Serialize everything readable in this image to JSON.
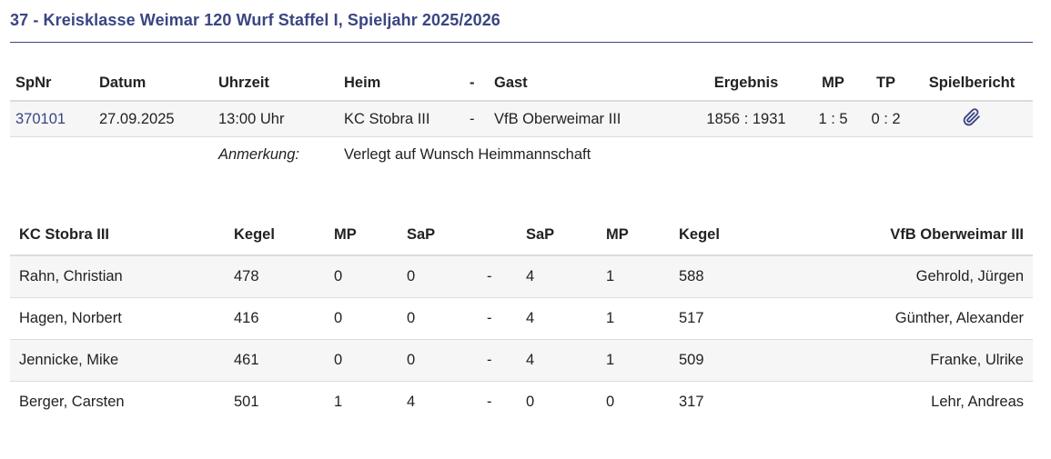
{
  "title": "37 - Kreisklasse Weimar 120 Wurf Staffel I, Spieljahr 2025/2026",
  "match": {
    "headers": {
      "spnr": "SpNr",
      "datum": "Datum",
      "uhrzeit": "Uhrzeit",
      "heim": "Heim",
      "sep": "-",
      "gast": "Gast",
      "ergebnis": "Ergebnis",
      "mp": "MP",
      "tp": "TP",
      "spielbericht": "Spielbericht"
    },
    "row": {
      "spnr": "370101",
      "datum": "27.09.2025",
      "uhrzeit": "13:00 Uhr",
      "heim": "KC Stobra III",
      "sep": "-",
      "gast": "VfB Oberweimar III",
      "ergebnis": "1856 : 1931",
      "mp": "1 : 5",
      "tp": "0 : 2",
      "spielbericht_icon": "paperclip-icon"
    },
    "note": {
      "label": "Anmerkung:",
      "text": "Verlegt auf Wunsch Heimmannschaft"
    }
  },
  "players": {
    "headers": {
      "home_team": "KC Stobra III",
      "home_kegel": "Kegel",
      "home_mp": "MP",
      "home_sap": "SaP",
      "sep": "",
      "away_sap": "SaP",
      "away_mp": "MP",
      "away_kegel": "Kegel",
      "away_team": "VfB Oberweimar III"
    },
    "rows": [
      {
        "home": "Rahn, Christian",
        "home_kegel": "478",
        "home_mp": "0",
        "home_sap": "0",
        "sep": "-",
        "away_sap": "4",
        "away_mp": "1",
        "away_kegel": "588",
        "away": "Gehrold, Jürgen"
      },
      {
        "home": "Hagen, Norbert",
        "home_kegel": "416",
        "home_mp": "0",
        "home_sap": "0",
        "sep": "-",
        "away_sap": "4",
        "away_mp": "1",
        "away_kegel": "517",
        "away": "Günther, Alexander"
      },
      {
        "home": "Jennicke, Mike",
        "home_kegel": "461",
        "home_mp": "0",
        "home_sap": "0",
        "sep": "-",
        "away_sap": "4",
        "away_mp": "1",
        "away_kegel": "509",
        "away": "Franke, Ulrike"
      },
      {
        "home": "Berger, Carsten",
        "home_kegel": "501",
        "home_mp": "1",
        "home_sap": "4",
        "sep": "-",
        "away_sap": "0",
        "away_mp": "0",
        "away_kegel": "317",
        "away": "Lehr, Andreas"
      }
    ]
  },
  "colors": {
    "accent": "#3a4582",
    "row_stripe": "#f6f6f6",
    "border": "#dcdcdc"
  }
}
